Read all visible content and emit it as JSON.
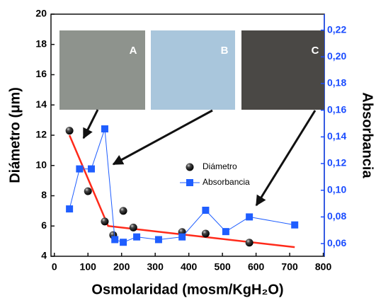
{
  "chart_data": {
    "type": "scatter",
    "xlabel": "Osmolaridad (mosm/KgH₂O)",
    "ylabel": "Diámetro (μm)",
    "y2label": "Absorbancia",
    "xlim": [
      -10,
      803
    ],
    "xticks": [
      0,
      100,
      200,
      300,
      400,
      500,
      600,
      700,
      800
    ],
    "ylim": [
      4,
      20
    ],
    "yticks": [
      4,
      6,
      8,
      10,
      12,
      14,
      16,
      18,
      20
    ],
    "y2lim": [
      0.0505,
      0.232
    ],
    "y2ticks": [
      {
        "value": 0.06,
        "label": "0,06"
      },
      {
        "value": 0.08,
        "label": "0,08"
      },
      {
        "value": 0.1,
        "label": "0,10"
      },
      {
        "value": 0.12,
        "label": "0,12"
      },
      {
        "value": 0.14,
        "label": "0,14"
      },
      {
        "value": 0.16,
        "label": "0,16"
      },
      {
        "value": 0.18,
        "label": "0,18"
      },
      {
        "value": 0.2,
        "label": "0,20"
      },
      {
        "value": 0.22,
        "label": "0,22"
      }
    ],
    "y2color": "#1a4cff",
    "legend": "center",
    "series": [
      {
        "name": "Diámetro",
        "color": "#111111",
        "marker": "sphere",
        "x": [
          45,
          100,
          150,
          175,
          205,
          235,
          380,
          450,
          580
        ],
        "values": [
          12.3,
          8.3,
          6.3,
          5.4,
          7.0,
          5.9,
          5.6,
          5.5,
          4.9
        ]
      },
      {
        "name": "Absorbancia",
        "color": "#1f5eff",
        "marker": "square",
        "axis": "y2",
        "x": [
          45,
          75,
          110,
          150,
          180,
          205,
          245,
          310,
          380,
          450,
          510,
          580,
          715
        ],
        "values": [
          0.086,
          0.116,
          0.116,
          0.146,
          0.063,
          0.061,
          0.065,
          0.063,
          0.065,
          0.085,
          0.069,
          0.08,
          0.074
        ]
      }
    ],
    "fit_line": {
      "color": "#ff2a1a",
      "x": [
        45,
        160,
        715
      ],
      "values": [
        12.0,
        6.0,
        4.6
      ]
    },
    "insets": [
      "A",
      "B",
      "C"
    ]
  }
}
